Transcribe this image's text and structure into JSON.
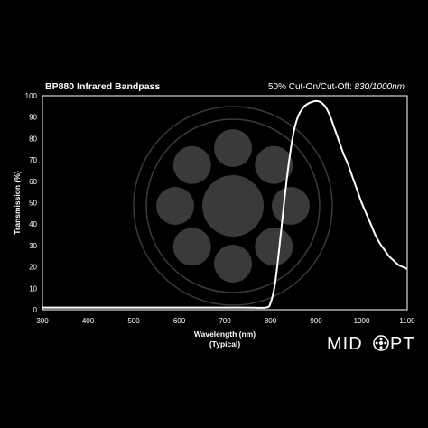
{
  "header": {
    "title": "BP880 Infrared Bandpass",
    "cutoff_label": "50% Cut-On/Cut-Off: ",
    "cutoff_value": "830/1000nm"
  },
  "brand": {
    "left": "MID",
    "right": "PT",
    "logo_icon": "lens-o-icon"
  },
  "colors": {
    "background": "#000000",
    "frame": "#ffffff",
    "curve": "#ffffff",
    "watermark": "#3a3a3a"
  },
  "chart_data": {
    "type": "line",
    "title": "BP880 Infrared Bandpass",
    "xlabel": "Wavelength (nm)",
    "xlabel_sub": "(Typical)",
    "ylabel": "Transmission (%)",
    "xlim": [
      300,
      1100
    ],
    "ylim": [
      0,
      100
    ],
    "xticks": [
      300,
      400,
      500,
      600,
      700,
      800,
      900,
      1000,
      1100
    ],
    "yticks": [
      0,
      10,
      20,
      30,
      40,
      50,
      60,
      70,
      80,
      90,
      100
    ],
    "grid": false,
    "series": [
      {
        "x": [
          300,
          400,
          500,
          600,
          700,
          750,
          790,
          800,
          810,
          820,
          830,
          840,
          850,
          860,
          870,
          880,
          890,
          900,
          910,
          920,
          930,
          940,
          950,
          960,
          970,
          980,
          990,
          1000,
          1010,
          1020,
          1030,
          1040,
          1050,
          1060,
          1070,
          1080,
          1090,
          1100
        ],
        "y": [
          1,
          1,
          1,
          1,
          1,
          1,
          1,
          3,
          12,
          30,
          50,
          68,
          82,
          90,
          94,
          96,
          97,
          97.5,
          97,
          95,
          91,
          85,
          79,
          73,
          68,
          62,
          56,
          50,
          45,
          40,
          35,
          31,
          28,
          25,
          23,
          21,
          20,
          19
        ]
      }
    ]
  }
}
